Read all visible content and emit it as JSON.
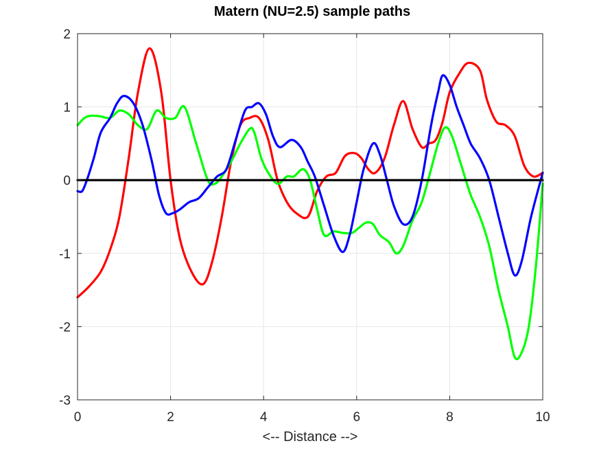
{
  "chart_data": {
    "type": "line",
    "title": "Matern (NU=2.5) sample paths",
    "xlabel": "<-- Distance -->",
    "ylabel": "",
    "xlim": [
      0,
      10
    ],
    "ylim": [
      -3,
      2
    ],
    "xticks": [
      0,
      2,
      4,
      6,
      8,
      10
    ],
    "yticks": [
      -3,
      -2,
      -1,
      0,
      1,
      2
    ],
    "grid": true,
    "series": [
      {
        "color": "#ff0000",
        "x": [
          0,
          0.25,
          0.5,
          0.7,
          0.9,
          1.1,
          1.3,
          1.55,
          1.8,
          2.0,
          2.2,
          2.45,
          2.7,
          2.9,
          3.1,
          3.3,
          3.5,
          3.7,
          3.9,
          4.1,
          4.3,
          4.5,
          4.7,
          4.95,
          5.15,
          5.35,
          5.55,
          5.75,
          5.95,
          6.1,
          6.25,
          6.4,
          6.6,
          6.8,
          7.0,
          7.2,
          7.4,
          7.55,
          7.7,
          7.85,
          8.0,
          8.2,
          8.4,
          8.65,
          8.8,
          9.0,
          9.2,
          9.4,
          9.6,
          9.8,
          10.0
        ],
        "y": [
          -1.6,
          -1.45,
          -1.25,
          -0.95,
          -0.5,
          0.3,
          1.2,
          1.8,
          1.2,
          0.0,
          -0.8,
          -1.25,
          -1.42,
          -1.1,
          -0.5,
          0.25,
          0.75,
          0.85,
          0.85,
          0.55,
          0.0,
          -0.3,
          -0.45,
          -0.5,
          -0.15,
          0.05,
          0.1,
          0.33,
          0.37,
          0.3,
          0.15,
          0.1,
          0.3,
          0.75,
          1.08,
          0.7,
          0.45,
          0.5,
          0.55,
          0.8,
          1.2,
          1.45,
          1.6,
          1.5,
          1.1,
          0.8,
          0.75,
          0.6,
          0.2,
          0.05,
          0.1
        ]
      },
      {
        "color": "#00ff00",
        "x": [
          0,
          0.15,
          0.3,
          0.5,
          0.7,
          0.9,
          1.1,
          1.3,
          1.5,
          1.7,
          1.9,
          2.1,
          2.3,
          2.55,
          2.8,
          2.95,
          3.1,
          3.3,
          3.5,
          3.7,
          3.8,
          3.95,
          4.1,
          4.3,
          4.5,
          4.65,
          4.85,
          5.0,
          5.15,
          5.3,
          5.5,
          5.7,
          5.9,
          6.05,
          6.2,
          6.35,
          6.5,
          6.7,
          6.85,
          7.0,
          7.2,
          7.4,
          7.6,
          7.75,
          7.9,
          8.05,
          8.25,
          8.45,
          8.65,
          8.85,
          9.05,
          9.25,
          9.4,
          9.55,
          9.7,
          9.85,
          10.0
        ],
        "y": [
          0.75,
          0.85,
          0.88,
          0.87,
          0.85,
          0.95,
          0.9,
          0.75,
          0.7,
          0.95,
          0.85,
          0.85,
          1.0,
          0.5,
          0.0,
          -0.05,
          0.05,
          0.25,
          0.5,
          0.7,
          0.65,
          0.3,
          0.1,
          -0.05,
          0.05,
          0.05,
          0.15,
          0.0,
          -0.4,
          -0.75,
          -0.7,
          -0.72,
          -0.72,
          -0.65,
          -0.58,
          -0.6,
          -0.75,
          -0.85,
          -1.0,
          -0.9,
          -0.55,
          -0.3,
          0.15,
          0.5,
          0.72,
          0.6,
          0.2,
          -0.2,
          -0.5,
          -0.9,
          -1.5,
          -2.0,
          -2.42,
          -2.35,
          -2.0,
          -1.2,
          -0.05
        ]
      },
      {
        "color": "#0000ff",
        "x": [
          0,
          0.1,
          0.2,
          0.35,
          0.5,
          0.7,
          0.85,
          1.0,
          1.2,
          1.4,
          1.6,
          1.75,
          1.9,
          2.05,
          2.2,
          2.4,
          2.6,
          2.8,
          3.0,
          3.2,
          3.4,
          3.6,
          3.75,
          3.9,
          4.05,
          4.2,
          4.35,
          4.6,
          4.8,
          4.95,
          5.1,
          5.3,
          5.5,
          5.7,
          5.85,
          6.0,
          6.15,
          6.35,
          6.5,
          6.65,
          6.8,
          7.0,
          7.2,
          7.4,
          7.6,
          7.75,
          7.85,
          8.0,
          8.15,
          8.3,
          8.45,
          8.65,
          8.85,
          9.05,
          9.25,
          9.4,
          9.55,
          9.75,
          10.0
        ],
        "y": [
          -0.15,
          -0.15,
          0.0,
          0.3,
          0.65,
          0.85,
          1.05,
          1.15,
          1.05,
          0.75,
          0.25,
          -0.2,
          -0.45,
          -0.45,
          -0.4,
          -0.3,
          -0.25,
          -0.1,
          0.05,
          0.15,
          0.55,
          0.95,
          1.0,
          1.05,
          0.9,
          0.6,
          0.45,
          0.55,
          0.45,
          0.25,
          0.05,
          -0.35,
          -0.75,
          -0.98,
          -0.75,
          -0.3,
          0.15,
          0.5,
          0.35,
          0.0,
          -0.35,
          -0.6,
          -0.5,
          0.0,
          0.75,
          1.2,
          1.43,
          1.3,
          1.0,
          0.75,
          0.5,
          0.3,
          0.0,
          -0.5,
          -1.0,
          -1.3,
          -1.1,
          -0.5,
          0.1
        ]
      },
      {
        "color": "#000000",
        "x": [
          0,
          10
        ],
        "y": [
          0,
          0
        ]
      }
    ]
  }
}
